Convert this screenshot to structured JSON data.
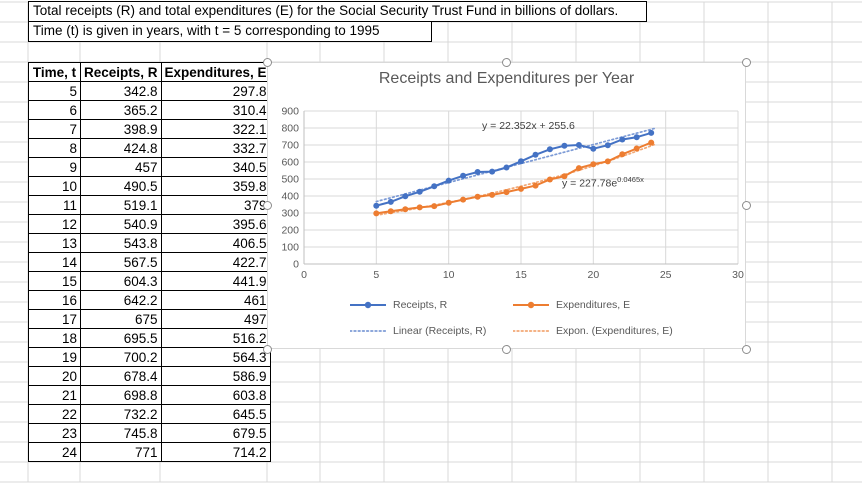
{
  "sheet": {
    "title_line1": "Total receipts (R) and total expenditures (E) for the Social Security Trust Fund in billions of dollars.",
    "title_line2": "Time (t) is given in years, with t = 5 corresponding to 1995"
  },
  "table": {
    "headers": [
      "Time, t",
      "Receipts, R",
      "Expenditures, E"
    ],
    "rows": [
      [
        5,
        342.8,
        297.8
      ],
      [
        6,
        365.2,
        310.4
      ],
      [
        7,
        398.9,
        322.1
      ],
      [
        8,
        424.8,
        332.7
      ],
      [
        9,
        457,
        340.5
      ],
      [
        10,
        490.5,
        359.8
      ],
      [
        11,
        519.1,
        379
      ],
      [
        12,
        540.9,
        395.6
      ],
      [
        13,
        543.8,
        406.5
      ],
      [
        14,
        567.5,
        422.7
      ],
      [
        15,
        604.3,
        441.9
      ],
      [
        16,
        642.2,
        461
      ],
      [
        17,
        675,
        497
      ],
      [
        18,
        695.5,
        516.2
      ],
      [
        19,
        700.2,
        564.3
      ],
      [
        20,
        678.4,
        586.9
      ],
      [
        21,
        698.8,
        603.8
      ],
      [
        22,
        732.2,
        645.5
      ],
      [
        23,
        745.8,
        679.5
      ],
      [
        24,
        771,
        714.2
      ]
    ]
  },
  "chart_data": {
    "type": "line",
    "title": "Receipts and Expenditures per Year",
    "x": [
      5,
      6,
      7,
      8,
      9,
      10,
      11,
      12,
      13,
      14,
      15,
      16,
      17,
      18,
      19,
      20,
      21,
      22,
      23,
      24
    ],
    "series": [
      {
        "name": "Receipts, R",
        "color": "#4472C4",
        "values": [
          342.8,
          365.2,
          398.9,
          424.8,
          457,
          490.5,
          519.1,
          540.9,
          543.8,
          567.5,
          604.3,
          642.2,
          675,
          695.5,
          700.2,
          678.4,
          698.8,
          732.2,
          745.8,
          771
        ]
      },
      {
        "name": "Expenditures, E",
        "color": "#ED7D31",
        "values": [
          297.8,
          310.4,
          322.1,
          332.7,
          340.5,
          359.8,
          379,
          395.6,
          406.5,
          422.7,
          441.9,
          461,
          497,
          516.2,
          564.3,
          586.9,
          603.8,
          645.5,
          679.5,
          714.2
        ]
      }
    ],
    "trendlines": [
      {
        "name": "Linear (Receipts, R)",
        "type": "linear",
        "slope": 22.352,
        "intercept": 255.6,
        "equation_label": "y = 22.352x + 255.6",
        "color": "#7D9BD6"
      },
      {
        "name": "Expon. (Expenditures, E)",
        "type": "exponential",
        "a": 227.78,
        "b": 0.0465,
        "equation_base": "y = 227.78e",
        "equation_exponent": "0.0465x",
        "color": "#F2A774"
      }
    ],
    "xlim": [
      0,
      30
    ],
    "ylim": [
      0,
      900
    ],
    "xticks": [
      0,
      5,
      10,
      15,
      20,
      25,
      30
    ],
    "yticks": [
      0,
      100,
      200,
      300,
      400,
      500,
      600,
      700,
      800,
      900
    ],
    "grid": true,
    "legend_position": "bottom",
    "axis_color": "#bfbfbf",
    "gridline_color": "#d9d9d9",
    "tick_label_color": "#595959"
  }
}
